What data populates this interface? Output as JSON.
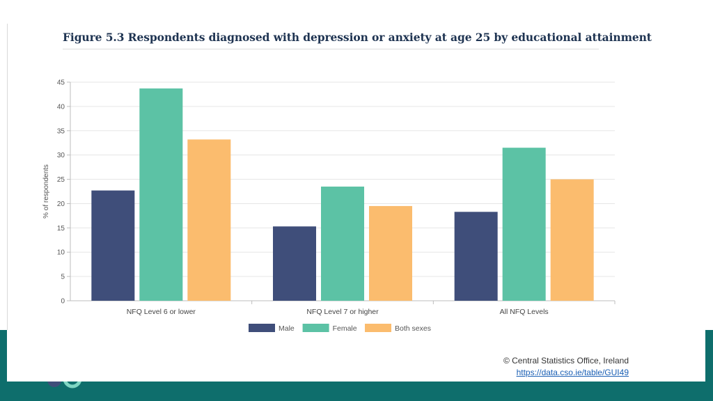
{
  "figure": {
    "title": "Figure 5.3 Respondents diagnosed with depression or anxiety at age 25 by educational attainment"
  },
  "chart_data": {
    "type": "bar",
    "categories": [
      "NFQ Level 6 or lower",
      "NFQ Level 7 or higher",
      "All NFQ Levels"
    ],
    "series": [
      {
        "name": "Male",
        "values": [
          22.7,
          15.3,
          18.3
        ],
        "color": "#3f4e7a"
      },
      {
        "name": "Female",
        "values": [
          43.7,
          23.5,
          31.5
        ],
        "color": "#5cc2a5"
      },
      {
        "name": "Both sexes",
        "values": [
          33.2,
          19.5,
          25.0
        ],
        "color": "#fbbc6e"
      }
    ],
    "ylabel": "% of respondents",
    "ylim": [
      0,
      45
    ],
    "yticks": [
      "0",
      "5",
      "10",
      "15",
      "20",
      "25",
      "30",
      "35",
      "40",
      "45"
    ],
    "grid": true,
    "legend": "bottom-center"
  },
  "credit": {
    "text": "© Central Statistics Office, Ireland",
    "link": "https://data.cso.ie/table/GUI49"
  },
  "colors": {
    "band": "#0e6e6c",
    "title": "#1f3452"
  }
}
